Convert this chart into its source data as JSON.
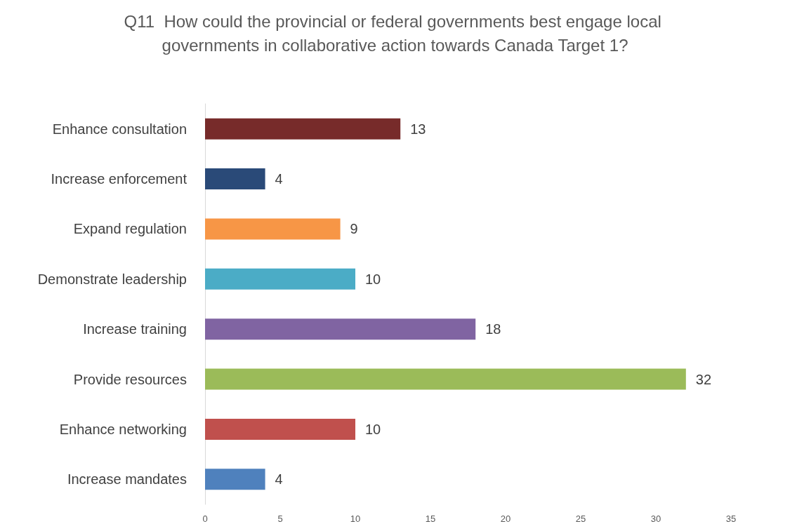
{
  "chart_data": {
    "type": "bar",
    "orientation": "horizontal",
    "title": "Q11  How could the provincial or federal governments best engage local governments in collaborative action towards Canada Target 1?",
    "categories": [
      "Enhance consultation",
      "Increase enforcement",
      "Expand regulation",
      "Demonstrate leadership",
      "Increase training",
      "Provide resources",
      "Enhance networking",
      "Increase mandates"
    ],
    "values": [
      13,
      4,
      9,
      10,
      18,
      32,
      10,
      4
    ],
    "colors": [
      "#772b2a",
      "#2a4a78",
      "#f79646",
      "#4bacc6",
      "#8064a2",
      "#9bbb59",
      "#c0504d",
      "#4f81bd"
    ],
    "xlim": [
      0,
      35
    ],
    "xticks": [
      0,
      5,
      10,
      15,
      20,
      25,
      30,
      35
    ],
    "grid": false,
    "data_labels": true
  }
}
